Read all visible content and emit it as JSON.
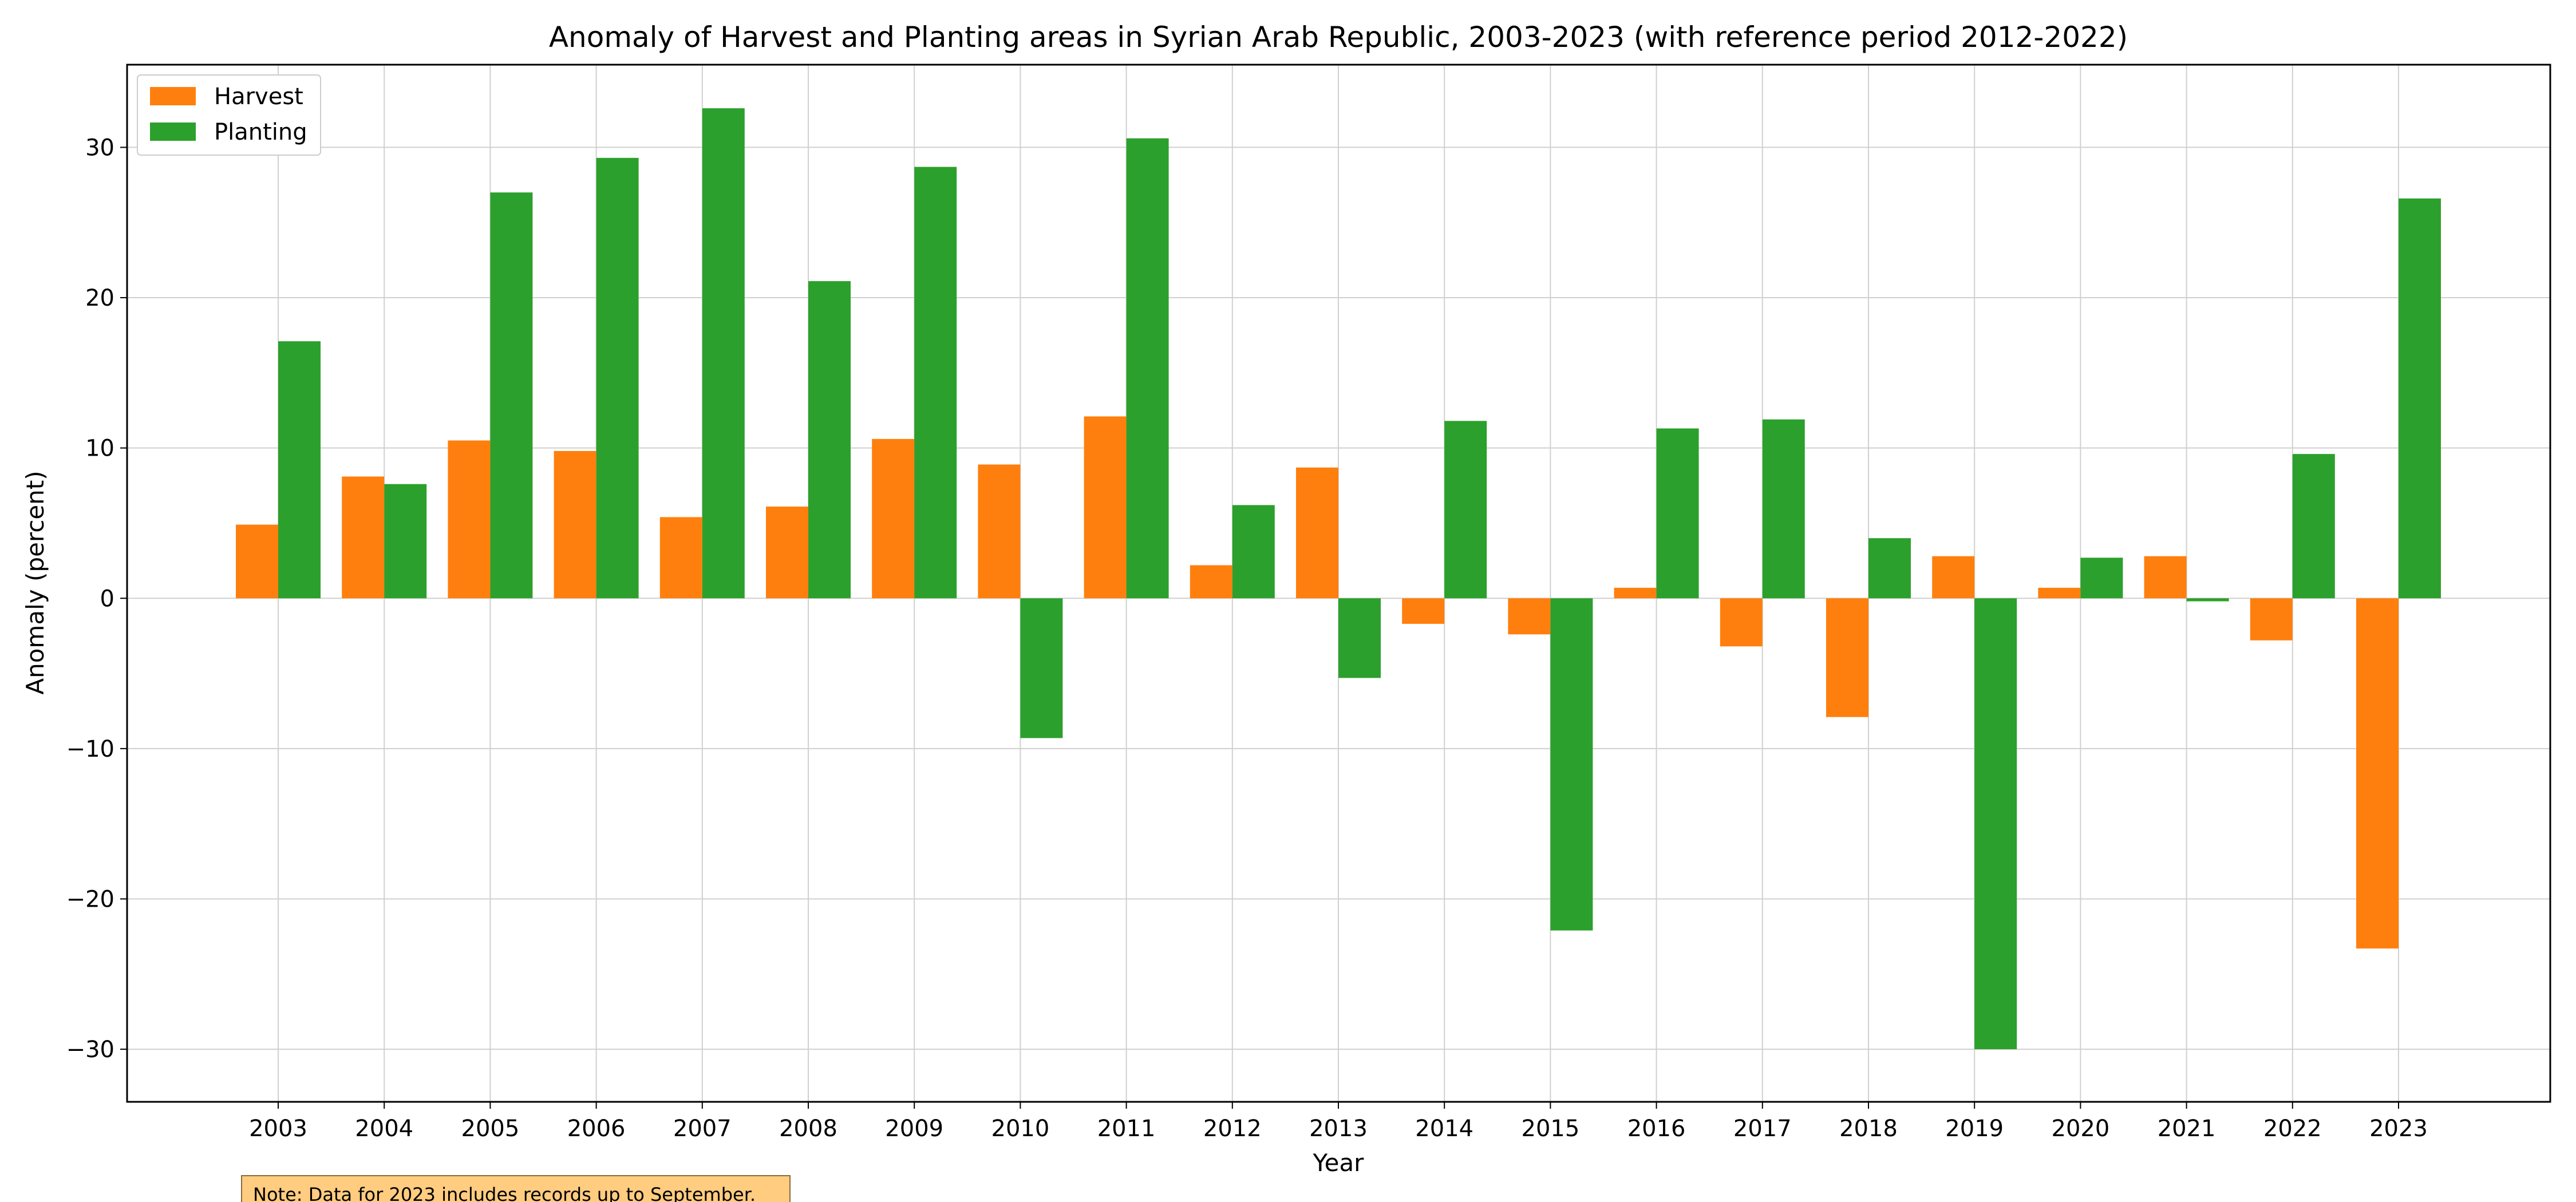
{
  "chart_data": {
    "type": "bar",
    "title": "Anomaly of Harvest and Planting areas in Syrian Arab Republic, 2003-2023 (with reference period 2012-2022)",
    "xlabel": "Year",
    "ylabel": "Anomaly (percent)",
    "categories": [
      "2003",
      "2004",
      "2005",
      "2006",
      "2007",
      "2008",
      "2009",
      "2010",
      "2011",
      "2012",
      "2013",
      "2014",
      "2015",
      "2016",
      "2017",
      "2018",
      "2019",
      "2020",
      "2021",
      "2022",
      "2023"
    ],
    "series": [
      {
        "name": "Harvest",
        "color": "#ff7f0e",
        "values": [
          4.9,
          8.1,
          10.5,
          9.8,
          5.4,
          6.1,
          10.6,
          8.9,
          12.1,
          2.2,
          8.7,
          -1.7,
          -2.4,
          0.7,
          -3.2,
          -7.9,
          2.8,
          0.7,
          2.8,
          -2.8,
          -23.3
        ]
      },
      {
        "name": "Planting",
        "color": "#2ca02c",
        "values": [
          17.1,
          7.6,
          27.0,
          29.3,
          32.6,
          21.1,
          28.7,
          -9.3,
          30.6,
          6.2,
          -5.3,
          11.8,
          -22.1,
          11.3,
          11.9,
          4.0,
          -30.0,
          2.7,
          -0.2,
          9.6,
          26.6
        ]
      }
    ],
    "ylim": [
      -33.5,
      35.5
    ],
    "yticks": [
      -30,
      -20,
      -10,
      0,
      10,
      20,
      30
    ],
    "ytick_labels": [
      "−30",
      "−20",
      "−10",
      "0",
      "10",
      "20",
      "30"
    ],
    "grid": true,
    "legend_position": "top-left",
    "note": "Note: Data for 2023 includes records up to September."
  }
}
